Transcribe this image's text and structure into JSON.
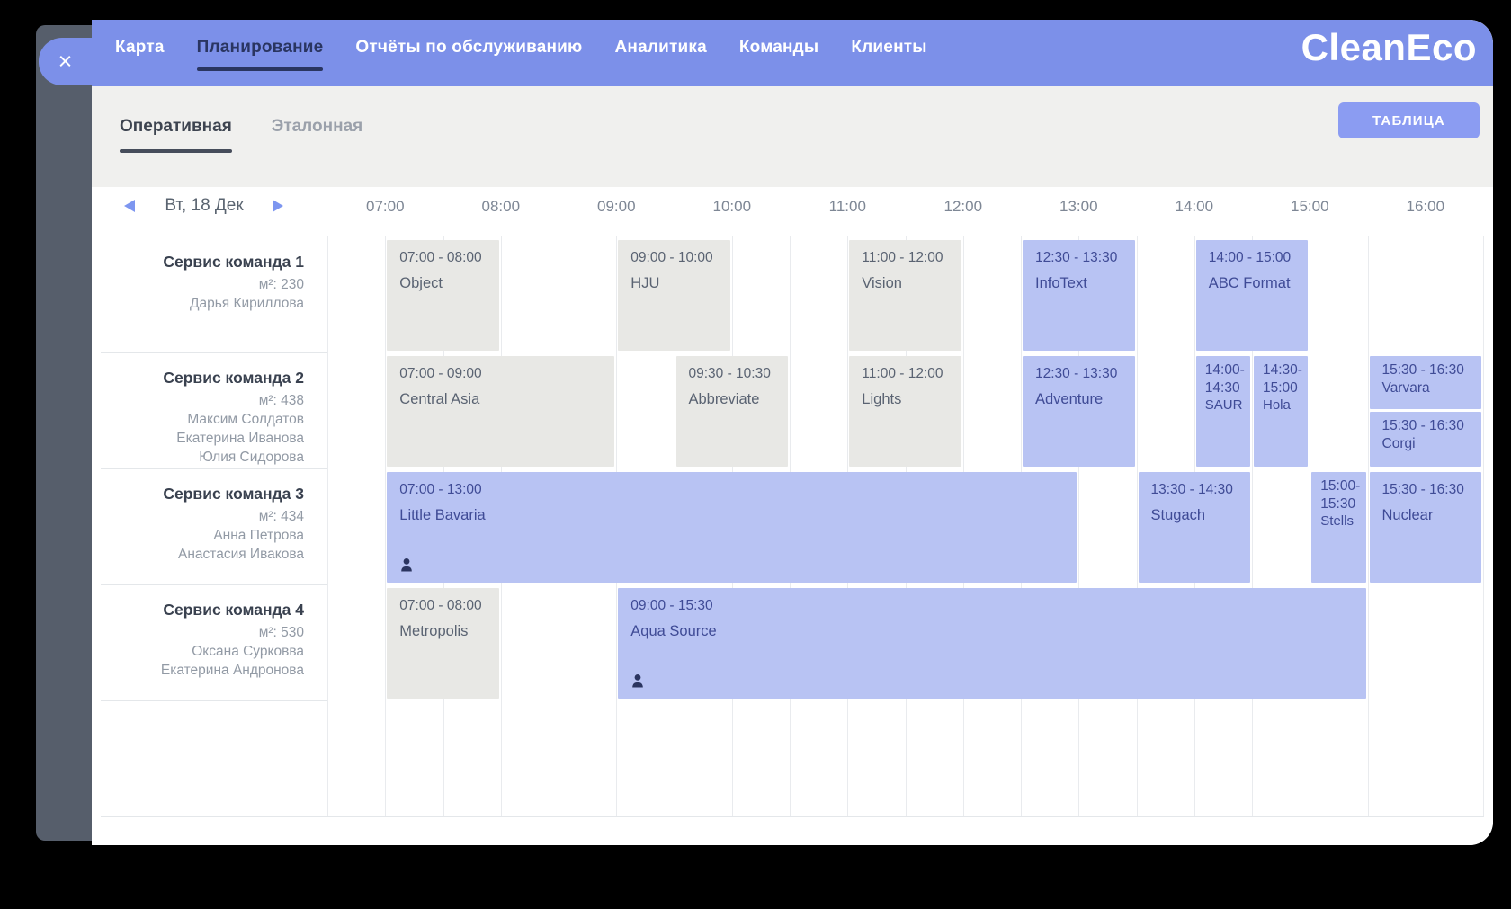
{
  "chrome": {
    "close_icon": "×"
  },
  "nav": {
    "logo": "CleanEco",
    "items": [
      {
        "key": "map",
        "label": "Карта",
        "active": false
      },
      {
        "key": "planning",
        "label": "Планирование",
        "active": true
      },
      {
        "key": "service-reports",
        "label": "Отчёты по обслуживанию",
        "active": false
      },
      {
        "key": "analytics",
        "label": "Аналитика",
        "active": false
      },
      {
        "key": "teams",
        "label": "Команды",
        "active": false
      },
      {
        "key": "clients",
        "label": "Клиенты",
        "active": false
      }
    ]
  },
  "tabs": {
    "items": [
      {
        "key": "operational",
        "label": "Оперативная",
        "active": true
      },
      {
        "key": "reference",
        "label": "Эталонная",
        "active": false
      }
    ],
    "table_button": "ТАБЛИЦА"
  },
  "date_nav": {
    "label": "Вт, 18 Дек"
  },
  "timeline": {
    "hours": [
      "07:00",
      "08:00",
      "09:00",
      "10:00",
      "11:00",
      "12:00",
      "13:00",
      "14:00",
      "15:00",
      "16:00"
    ]
  },
  "teams": [
    {
      "name": "Сервис команда 1",
      "area": "м²: 230",
      "members": [
        "Дарья Кириллова"
      ]
    },
    {
      "name": "Сервис команда 2",
      "area": "м²: 438",
      "members": [
        "Максим Солдатов",
        "Екатерина Иванова",
        "Юлия Сидорова"
      ]
    },
    {
      "name": "Сервис команда 3",
      "area": "м²: 434",
      "members": [
        "Анна Петрова",
        "Анастасия Ивакова"
      ]
    },
    {
      "name": "Сервис команда 4",
      "area": "м²: 530",
      "members": [
        "Оксана Сурковва",
        "Екатерина Андронова"
      ]
    }
  ],
  "blocks": [
    {
      "team": 0,
      "start": "07:00",
      "end": "08:00",
      "label": "07:00 - 08:00",
      "name": "Object",
      "color": "gray"
    },
    {
      "team": 0,
      "start": "09:00",
      "end": "10:00",
      "label": "09:00 - 10:00",
      "name": "HJU",
      "color": "gray"
    },
    {
      "team": 0,
      "start": "11:00",
      "end": "12:00",
      "label": "11:00 - 12:00",
      "name": "Vision",
      "color": "gray"
    },
    {
      "team": 0,
      "start": "12:30",
      "end": "13:30",
      "label": "12:30 - 13:30",
      "name": "InfoText",
      "color": "blue"
    },
    {
      "team": 0,
      "start": "14:00",
      "end": "15:00",
      "label": "14:00 - 15:00",
      "name": "ABC Format",
      "color": "blue"
    },
    {
      "team": 1,
      "start": "07:00",
      "end": "09:00",
      "label": "07:00 - 09:00",
      "name": "Central Asia",
      "color": "gray"
    },
    {
      "team": 1,
      "start": "09:30",
      "end": "10:30",
      "label": "09:30 - 10:30",
      "name": "Abbreviate",
      "color": "gray"
    },
    {
      "team": 1,
      "start": "11:00",
      "end": "12:00",
      "label": "11:00 - 12:00",
      "name": "Lights",
      "color": "gray"
    },
    {
      "team": 1,
      "start": "12:30",
      "end": "13:30",
      "label": "12:30 - 13:30",
      "name": "Adventure",
      "color": "blue"
    },
    {
      "team": 1,
      "start": "14:00",
      "end": "14:30",
      "label": "14:00-\n14:30",
      "name": "SAUR",
      "color": "blue"
    },
    {
      "team": 1,
      "start": "14:30",
      "end": "15:00",
      "label": "14:30-\n15:00",
      "name": "Hola",
      "color": "blue"
    },
    {
      "team": 1,
      "start": "15:30",
      "end": "16:30",
      "label": "15:30 - 16:30",
      "name": "Varvara",
      "color": "blue",
      "stack": "top"
    },
    {
      "team": 1,
      "start": "15:30",
      "end": "16:30",
      "label": "15:30 - 16:30",
      "name": "Corgi",
      "color": "blue",
      "stack": "bottom"
    },
    {
      "team": 2,
      "start": "07:00",
      "end": "13:00",
      "label": "07:00 - 13:00",
      "name": "Little Bavaria",
      "color": "blue",
      "person": true
    },
    {
      "team": 2,
      "start": "13:30",
      "end": "14:30",
      "label": "13:30 - 14:30",
      "name": "Stugach",
      "color": "blue"
    },
    {
      "team": 2,
      "start": "15:00",
      "end": "15:30",
      "label": "15:00-\n15:30",
      "name": "Stells",
      "color": "blue"
    },
    {
      "team": 2,
      "start": "15:30",
      "end": "16:30",
      "label": "15:30 - 16:30",
      "name": "Nuclear",
      "color": "blue"
    },
    {
      "team": 3,
      "start": "07:00",
      "end": "08:00",
      "label": "07:00 - 08:00",
      "name": "Metropolis",
      "color": "gray"
    },
    {
      "team": 3,
      "start": "09:00",
      "end": "15:30",
      "label": "09:00 - 15:30",
      "name": "Aqua Source",
      "color": "blue",
      "person": true
    }
  ],
  "colors": {
    "nav_bg": "#7c90e9",
    "nav_active": "#2a3561",
    "accent_button": "#8b9cf2",
    "block_gray": "#e8e8e5",
    "block_blue": "#b8c3f3",
    "block_gray_text": "#5a6372",
    "block_blue_text": "#3f4b96"
  }
}
